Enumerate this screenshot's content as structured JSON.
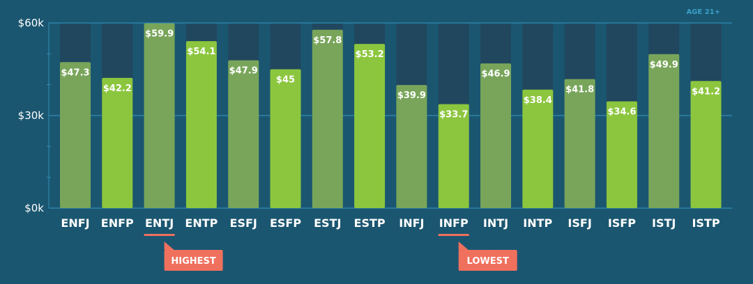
{
  "chart_data": {
    "type": "bar",
    "title": "",
    "note": "AGE 21+",
    "xlabel": "",
    "ylabel": "",
    "ylim": [
      0,
      60
    ],
    "yticks": [
      {
        "value": 0,
        "label": "$0k"
      },
      {
        "value": 30,
        "label": "$30k"
      },
      {
        "value": 60,
        "label": "$60k"
      }
    ],
    "categories": [
      "ENFJ",
      "ENFP",
      "ENTJ",
      "ENTP",
      "ESFJ",
      "ESFP",
      "ESTJ",
      "ESTP",
      "INFJ",
      "INFP",
      "INTJ",
      "INTP",
      "ISFJ",
      "ISFP",
      "ISTJ",
      "ISTP"
    ],
    "values": [
      47.3,
      42.2,
      59.9,
      54.1,
      47.9,
      45,
      57.8,
      53.2,
      39.9,
      33.7,
      46.9,
      38.4,
      41.8,
      34.6,
      49.9,
      41.2
    ],
    "value_labels": [
      "$47.3",
      "$42.2",
      "$59.9",
      "$54.1",
      "$47.9",
      "$45",
      "$57.8",
      "$53.2",
      "$39.9",
      "$33.7",
      "$46.9",
      "$38.4",
      "$41.8",
      "$34.6",
      "$49.9",
      "$41.2"
    ],
    "annotations": [
      {
        "category": "ENTJ",
        "text": "HIGHEST"
      },
      {
        "category": "INFP",
        "text": "LOWEST"
      }
    ],
    "colors": {
      "background": "#1b5670",
      "track": "#21475f",
      "bar_dark": "#78a55a",
      "bar_light": "#8cc63e",
      "gridline": "#2f8db5",
      "callout": "#f0705e"
    },
    "grid": true
  }
}
